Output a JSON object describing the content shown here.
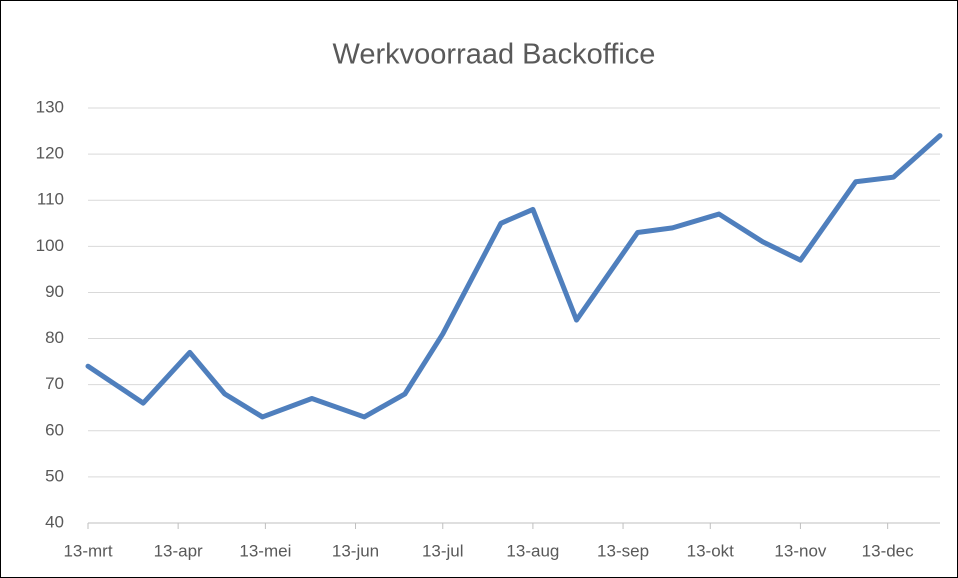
{
  "chart_data": {
    "type": "line",
    "title": "Werkvoorraad Backoffice",
    "x": [
      "13-mrt",
      "1-apr",
      "17-apr",
      "29-apr",
      "12-mei",
      "29-mei",
      "16-jun",
      "30-jun",
      "13-jul",
      "2-aug",
      "13-aug",
      "28-aug",
      "18-sep",
      "30-sep",
      "16-okt",
      "31-okt",
      "13-nov",
      "2-dec",
      "15-dec",
      "31-dec"
    ],
    "values": [
      74,
      66,
      77,
      68,
      63,
      67,
      63,
      68,
      81,
      105,
      108,
      84,
      103,
      104,
      107,
      101,
      97,
      114,
      115,
      124
    ],
    "color": "#4f7fbd",
    "xlim": [
      "13-mrt",
      "31-dec"
    ],
    "xticks": [
      "13-mrt",
      "13-apr",
      "13-mei",
      "13-jun",
      "13-jul",
      "13-aug",
      "13-sep",
      "13-okt",
      "13-nov",
      "13-dec"
    ],
    "ylim": [
      40,
      130
    ],
    "yticks": [
      40,
      50,
      60,
      70,
      80,
      90,
      100,
      110,
      120,
      130
    ],
    "grid": true
  }
}
